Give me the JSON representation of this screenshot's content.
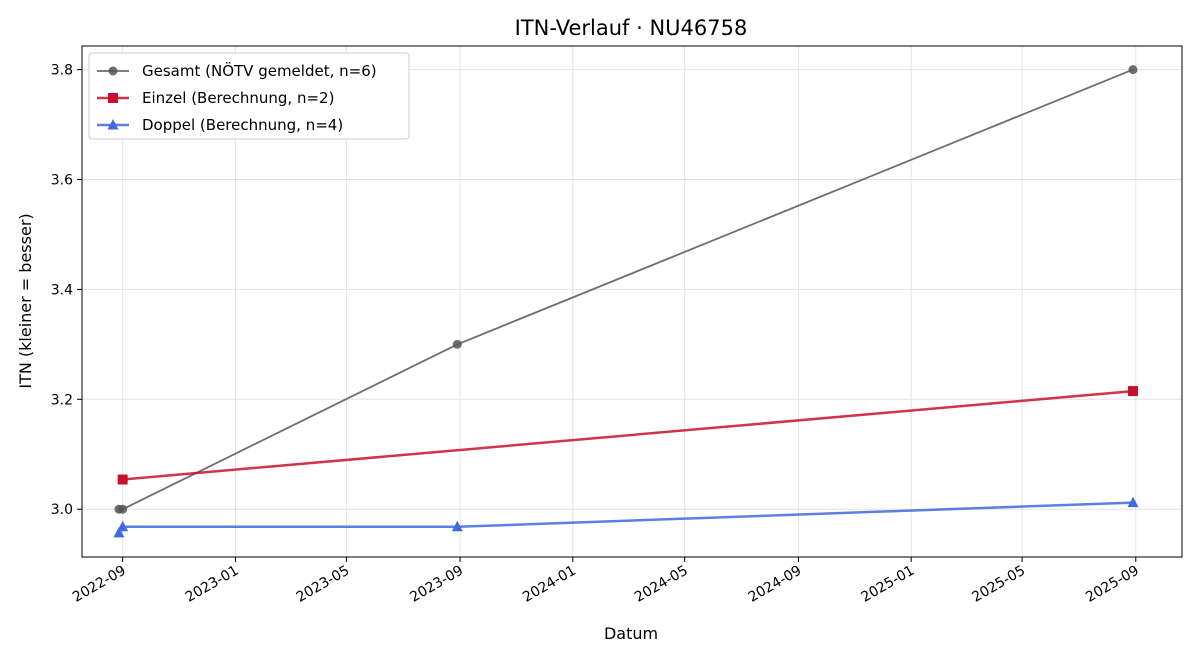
{
  "chart_data": {
    "type": "line",
    "title": "ITN-Verlauf · NU46758",
    "xlabel": "Datum",
    "ylabel": "ITN  (kleiner = besser)",
    "x_type": "date",
    "xlim": [
      "2022-07-19",
      "2025-10-21"
    ],
    "ylim": [
      2.913,
      3.843
    ],
    "x_ticks": [
      "2022-09",
      "2023-01",
      "2023-05",
      "2023-09",
      "2024-01",
      "2024-05",
      "2024-09",
      "2025-01",
      "2025-05",
      "2025-09"
    ],
    "y_ticks": [
      3.0,
      3.2,
      3.4,
      3.6,
      3.8
    ],
    "grid": true,
    "legend_position": "top-left",
    "series": [
      {
        "name": "Gesamt (NÖTV gemeldet, n=6)",
        "color": "#555555",
        "marker": "circle",
        "line_width": 1.8,
        "points": [
          {
            "x": "2022-08-28",
            "y": 3.0
          },
          {
            "x": "2022-09-01",
            "y": 3.0
          },
          {
            "x": "2023-08-29",
            "y": 3.3
          },
          {
            "x": "2025-08-29",
            "y": 3.8
          }
        ]
      },
      {
        "name": "Einzel (Berechnung, n=2)",
        "color": "#c8102e",
        "marker": "square",
        "line_width": 2.5,
        "points": [
          {
            "x": "2022-09-01",
            "y": 3.054
          },
          {
            "x": "2025-08-29",
            "y": 3.215
          }
        ]
      },
      {
        "name": "Doppel (Berechnung, n=4)",
        "color": "#4169e1",
        "marker": "triangle",
        "line_width": 2.5,
        "points": [
          {
            "x": "2022-08-28",
            "y": 2.957
          },
          {
            "x": "2022-09-01",
            "y": 2.968
          },
          {
            "x": "2023-08-29",
            "y": 2.968
          },
          {
            "x": "2025-08-29",
            "y": 3.012
          }
        ]
      }
    ]
  }
}
